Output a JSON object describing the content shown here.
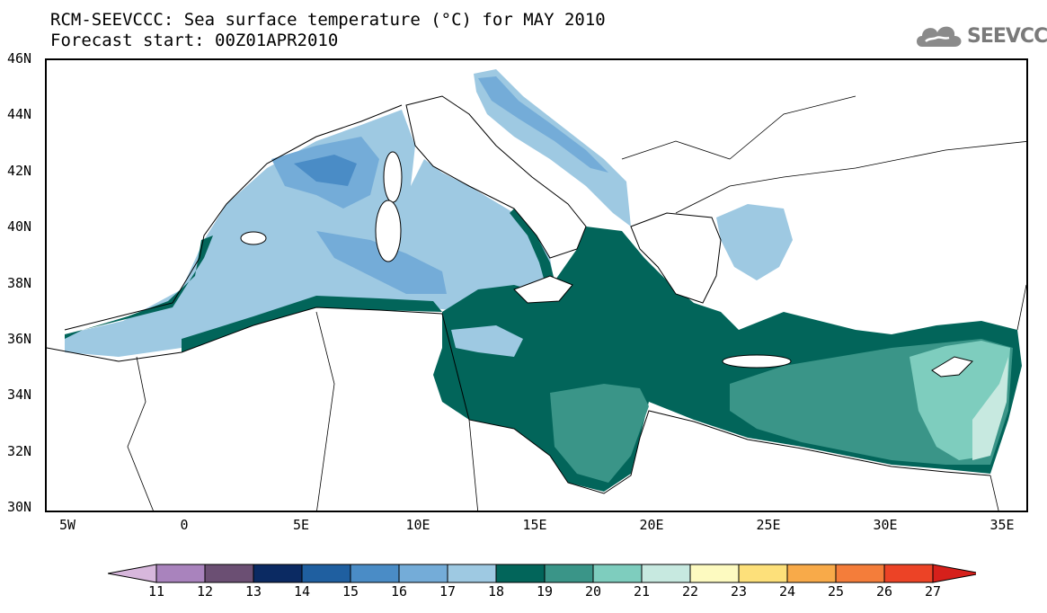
{
  "header": {
    "title_line1": "RCM-SEEVCCC: Sea surface temperature (°C) for MAY 2010",
    "title_line2": "Forecast start: 00Z01APR2010"
  },
  "logo": {
    "text": "SEEVCCC",
    "icon": "cloud-logo-icon"
  },
  "map": {
    "lat_labels": [
      "46N",
      "44N",
      "42N",
      "40N",
      "38N",
      "36N",
      "34N",
      "32N",
      "30N"
    ],
    "lon_labels": [
      "5W",
      "0",
      "5E",
      "10E",
      "15E",
      "20E",
      "25E",
      "30E",
      "35E"
    ],
    "sea_color": "#9ec9e2",
    "land_color": "#ffffff"
  },
  "colorbar": {
    "labels": [
      "11",
      "12",
      "13",
      "14",
      "15",
      "16",
      "17",
      "18",
      "19",
      "20",
      "21",
      "22",
      "23",
      "24",
      "25",
      "26",
      "27"
    ],
    "colors": [
      "#d7b7dc",
      "#a983bd",
      "#6b4f73",
      "#0b2a62",
      "#1f5fa0",
      "#4a8cc6",
      "#74acd8",
      "#9ec9e2",
      "#02655a",
      "#3a9588",
      "#7ecdbe",
      "#c7e9e0",
      "#fdfac0",
      "#fde07a",
      "#f8aa49",
      "#f47d3a",
      "#ec4326",
      "#d6201b"
    ]
  }
}
